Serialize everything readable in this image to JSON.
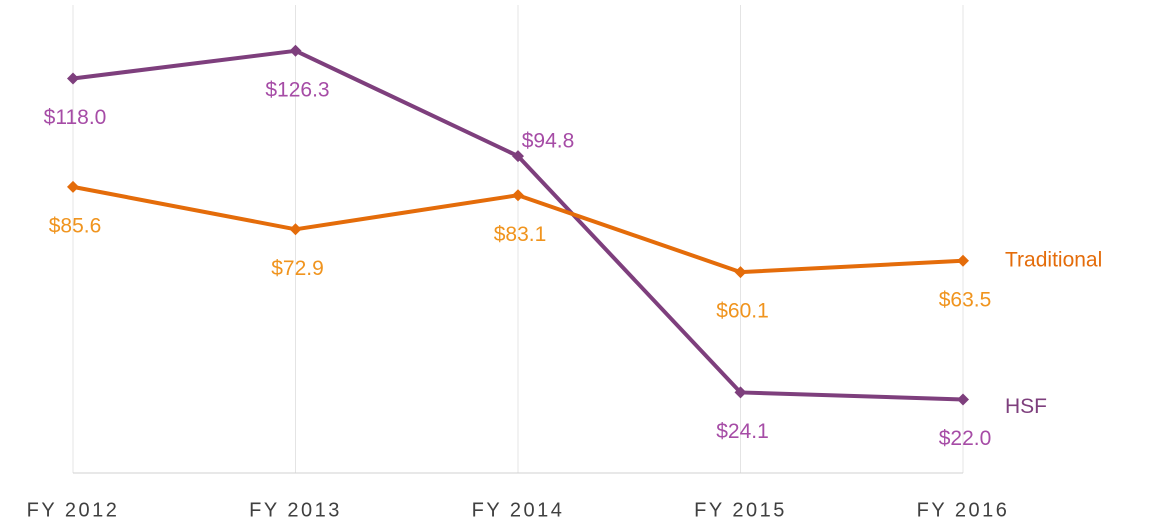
{
  "chart_data": {
    "type": "line",
    "categories": [
      "FY 2012",
      "FY 2013",
      "FY 2014",
      "FY 2015",
      "FY 2016"
    ],
    "series": [
      {
        "name": "HSF",
        "color": "#7e3f7d",
        "label_color": "#a64ca6",
        "values": [
          118.0,
          126.3,
          94.8,
          24.1,
          22.0
        ],
        "value_labels": [
          "$118.0",
          "$126.3",
          "$94.8",
          "$24.1",
          "$22.0"
        ]
      },
      {
        "name": "Traditional",
        "color": "#e46c0a",
        "label_color": "#f0941e",
        "values": [
          85.6,
          72.9,
          83.1,
          60.1,
          63.5
        ],
        "value_labels": [
          "$85.6",
          "$72.9",
          "$83.1",
          "$60.1",
          "$63.5"
        ]
      }
    ],
    "ylim": [
      0,
      140
    ],
    "grid": true
  }
}
